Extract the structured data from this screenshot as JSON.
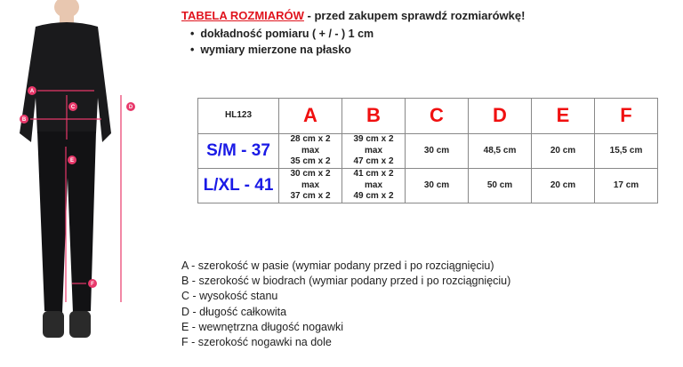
{
  "header": {
    "title_red": "TABELA ROZMIARÓW",
    "title_rest": " - przed zakupem sprawdź rozmiarówkę!"
  },
  "bullets": [
    "dokładność pomiaru ( + / - ) 1 cm",
    "wymiary mierzone na płasko"
  ],
  "table": {
    "model": "HL123",
    "columns": [
      "A",
      "B",
      "C",
      "D",
      "E",
      "F"
    ],
    "rows": [
      {
        "size": "S/M - 37",
        "cells": [
          [
            "28 cm x 2",
            "max",
            "35 cm x 2"
          ],
          [
            "39 cm x 2",
            "max",
            "47 cm x 2"
          ],
          [
            "30 cm"
          ],
          [
            "48,5 cm"
          ],
          [
            "20 cm"
          ],
          [
            "15,5 cm"
          ]
        ]
      },
      {
        "size": "L/XL - 41",
        "cells": [
          [
            "30 cm x 2",
            "max",
            "37 cm x 2"
          ],
          [
            "41 cm x 2",
            "max",
            "49 cm x 2"
          ],
          [
            "30 cm"
          ],
          [
            "50 cm"
          ],
          [
            "20 cm"
          ],
          [
            "17 cm"
          ]
        ]
      }
    ]
  },
  "legend": [
    "A - szerokość w pasie (wymiar podany przed i po rozciągnięciu)",
    "B - szerokość w biodrach (wymiar podany przed i po rozciągnięciu)",
    "C - wysokość stanu",
    "D - długość całkowita",
    "E - wewnętrzna długość nogawki",
    "F - szerokość nogawki na dole"
  ],
  "figure_labels": [
    "A",
    "B",
    "C",
    "D",
    "E",
    "F"
  ],
  "colors": {
    "accent_red": "#e0141e",
    "size_blue": "#1a1ae6",
    "marker_pink": "#e8386a"
  }
}
